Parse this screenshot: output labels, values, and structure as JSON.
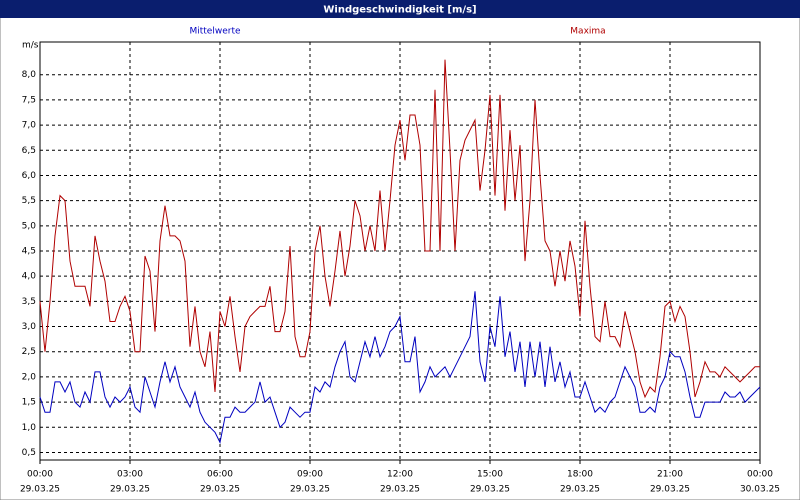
{
  "chart_data": {
    "type": "line",
    "title": "Windgeschwindigkeit [m/s]",
    "y_unit": "m/s",
    "x": [
      0,
      10,
      20,
      30,
      40,
      50,
      60,
      70,
      80,
      90,
      100,
      110,
      120,
      130,
      140,
      150,
      160,
      170,
      180,
      190,
      200,
      210,
      220,
      230,
      240,
      250,
      260,
      270,
      280,
      290,
      300,
      310,
      320,
      330,
      340,
      350,
      360,
      370,
      380,
      390,
      400,
      410,
      420,
      430,
      440,
      450,
      460,
      470,
      480,
      490,
      500,
      510,
      520,
      530,
      540,
      550,
      560,
      570,
      580,
      590,
      600,
      610,
      620,
      630,
      640,
      650,
      660,
      670,
      680,
      690,
      700,
      710,
      720,
      730,
      740,
      750,
      760,
      770,
      780,
      790,
      800,
      810,
      820,
      830,
      840,
      850,
      860,
      870,
      880,
      890,
      900,
      910,
      920,
      930,
      940,
      950,
      960,
      970,
      980,
      990,
      1000,
      1010,
      1020,
      1030,
      1040,
      1050,
      1060,
      1070,
      1080,
      1090,
      1100,
      1110,
      1120,
      1130,
      1140,
      1150,
      1160,
      1170,
      1180,
      1190,
      1200,
      1210,
      1220,
      1230,
      1240,
      1250,
      1260,
      1270,
      1280,
      1290,
      1300,
      1310,
      1320,
      1330,
      1340,
      1350,
      1360,
      1370,
      1380,
      1390,
      1400,
      1410,
      1420,
      1430,
      1440
    ],
    "series": [
      {
        "name": "Mittelwerte",
        "color": "#0000c0",
        "values": [
          1.6,
          1.3,
          1.3,
          1.9,
          1.9,
          1.7,
          1.9,
          1.5,
          1.4,
          1.7,
          1.5,
          2.1,
          2.1,
          1.6,
          1.4,
          1.6,
          1.5,
          1.6,
          1.8,
          1.4,
          1.3,
          2.0,
          1.7,
          1.4,
          1.9,
          2.3,
          1.9,
          2.2,
          1.8,
          1.6,
          1.4,
          1.7,
          1.3,
          1.1,
          1.0,
          0.9,
          0.7,
          1.2,
          1.2,
          1.4,
          1.3,
          1.3,
          1.4,
          1.5,
          1.9,
          1.5,
          1.6,
          1.3,
          1.0,
          1.1,
          1.4,
          1.3,
          1.2,
          1.3,
          1.3,
          1.8,
          1.7,
          1.9,
          1.8,
          2.2,
          2.5,
          2.7,
          2.0,
          1.9,
          2.3,
          2.7,
          2.4,
          2.8,
          2.4,
          2.6,
          2.9,
          3.0,
          3.2,
          2.3,
          2.3,
          2.8,
          1.7,
          1.9,
          2.2,
          2.0,
          2.1,
          2.2,
          2.0,
          2.2,
          2.4,
          2.6,
          2.8,
          3.7,
          2.3,
          1.9,
          3.0,
          2.6,
          3.6,
          2.4,
          2.9,
          2.1,
          2.7,
          1.8,
          2.7,
          2.0,
          2.7,
          1.8,
          2.6,
          1.9,
          2.3,
          1.8,
          2.1,
          1.6,
          1.6,
          1.9,
          1.6,
          1.3,
          1.4,
          1.3,
          1.5,
          1.6,
          1.9,
          2.2,
          2.0,
          1.8,
          1.3,
          1.3,
          1.4,
          1.3,
          1.8,
          2.0,
          2.5,
          2.4,
          2.4,
          2.1,
          1.6,
          1.2,
          1.2,
          1.5,
          1.5,
          1.5,
          1.5,
          1.7,
          1.6,
          1.6,
          1.7,
          1.5,
          1.6,
          1.7,
          1.8
        ]
      },
      {
        "name": "Maxima",
        "color": "#b00000",
        "values": [
          3.5,
          2.5,
          3.5,
          4.8,
          5.6,
          5.5,
          4.3,
          3.8,
          3.8,
          3.8,
          3.4,
          4.8,
          4.3,
          3.9,
          3.1,
          3.1,
          3.4,
          3.6,
          3.3,
          2.5,
          2.5,
          4.4,
          4.1,
          2.9,
          4.7,
          5.4,
          4.8,
          4.8,
          4.7,
          4.3,
          2.6,
          3.4,
          2.5,
          2.2,
          2.9,
          1.7,
          3.3,
          3.0,
          3.6,
          2.8,
          2.1,
          3.0,
          3.2,
          3.3,
          3.4,
          3.4,
          3.8,
          2.9,
          2.9,
          3.3,
          4.6,
          2.8,
          2.4,
          2.4,
          2.9,
          4.5,
          5.0,
          4.0,
          3.4,
          4.1,
          4.9,
          4.0,
          4.6,
          5.5,
          5.2,
          4.5,
          5.0,
          4.5,
          5.7,
          4.5,
          5.5,
          6.6,
          7.1,
          6.3,
          7.2,
          7.2,
          6.6,
          4.5,
          4.5,
          7.7,
          4.5,
          8.3,
          6.5,
          4.5,
          6.3,
          6.7,
          6.9,
          7.1,
          5.7,
          6.5,
          7.6,
          5.6,
          7.6,
          5.3,
          6.9,
          5.5,
          6.6,
          4.3,
          5.5,
          7.5,
          6.0,
          4.7,
          4.5,
          3.8,
          4.5,
          3.9,
          4.7,
          4.2,
          3.2,
          5.1,
          3.8,
          2.8,
          2.7,
          3.5,
          2.8,
          2.8,
          2.6,
          3.3,
          2.9,
          2.5,
          1.9,
          1.6,
          1.8,
          1.7,
          2.4,
          3.4,
          3.5,
          3.1,
          3.4,
          3.2,
          2.5,
          1.6,
          1.9,
          2.3,
          2.1,
          2.1,
          2.0,
          2.2,
          2.1,
          2.0,
          1.9,
          2.0,
          2.1,
          2.2,
          2.2
        ]
      }
    ],
    "xlim": [
      0,
      1440
    ],
    "xticks": [
      {
        "value": 0,
        "label": "00:00"
      },
      {
        "value": 180,
        "label": "03:00"
      },
      {
        "value": 360,
        "label": "06:00"
      },
      {
        "value": 540,
        "label": "09:00"
      },
      {
        "value": 720,
        "label": "12:00"
      },
      {
        "value": 900,
        "label": "15:00"
      },
      {
        "value": 1080,
        "label": "18:00"
      },
      {
        "value": 1260,
        "label": "21:00"
      },
      {
        "value": 1440,
        "label": "00:00"
      }
    ],
    "xtick_dates": [
      "29.03.25",
      "29.03.25",
      "29.03.25",
      "29.03.25",
      "29.03.25",
      "29.03.25",
      "29.03.25",
      "29.03.25",
      "30.03.25"
    ],
    "ylim": [
      0.35,
      8.65
    ],
    "yticks": [
      {
        "value": 0.5,
        "label": "0,5"
      },
      {
        "value": 1.0,
        "label": "1,0"
      },
      {
        "value": 1.5,
        "label": "1,5"
      },
      {
        "value": 2.0,
        "label": "2,0"
      },
      {
        "value": 2.5,
        "label": "2,5"
      },
      {
        "value": 3.0,
        "label": "3,0"
      },
      {
        "value": 3.5,
        "label": "3,5"
      },
      {
        "value": 4.0,
        "label": "4,0"
      },
      {
        "value": 4.5,
        "label": "4,5"
      },
      {
        "value": 5.0,
        "label": "5,0"
      },
      {
        "value": 5.5,
        "label": "5,5"
      },
      {
        "value": 6.0,
        "label": "6,0"
      },
      {
        "value": 6.5,
        "label": "6,5"
      },
      {
        "value": 7.0,
        "label": "7,0"
      },
      {
        "value": 7.5,
        "label": "7,5"
      },
      {
        "value": 8.0,
        "label": "8,0"
      }
    ],
    "grid": true
  }
}
